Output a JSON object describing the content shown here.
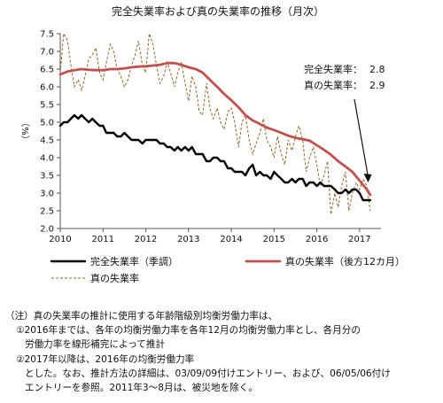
{
  "chart_data": {
    "type": "line",
    "title": "完全失業率および真の失業率の推移（月次）",
    "ylabel": "（%）",
    "ylim": [
      2.0,
      7.5
    ],
    "yticks": [
      "2.0",
      "2.5",
      "3.0",
      "3.5",
      "4.0",
      "4.5",
      "5.0",
      "5.5",
      "6.0",
      "6.5",
      "7.0",
      "7.5"
    ],
    "xlim": [
      2010.0,
      2017.5
    ],
    "xticks": [
      "2010",
      "2011",
      "2012",
      "2013",
      "2014",
      "2015",
      "2016",
      "2017"
    ],
    "grid": false,
    "legend_placement": "bottom",
    "series": [
      {
        "name": "完全失業率（季調）",
        "color": "#000000",
        "style": "solid-thick",
        "x": [
          2010.0,
          2010.08,
          2010.17,
          2010.25,
          2010.33,
          2010.42,
          2010.5,
          2010.58,
          2010.67,
          2010.75,
          2010.83,
          2010.92,
          2011.0,
          2011.08,
          2011.17,
          2011.25,
          2011.33,
          2011.42,
          2011.5,
          2011.58,
          2011.67,
          2011.75,
          2011.83,
          2011.92,
          2012.0,
          2012.08,
          2012.17,
          2012.25,
          2012.33,
          2012.42,
          2012.5,
          2012.58,
          2012.67,
          2012.75,
          2012.83,
          2012.92,
          2013.0,
          2013.08,
          2013.17,
          2013.25,
          2013.33,
          2013.42,
          2013.5,
          2013.58,
          2013.67,
          2013.75,
          2013.83,
          2013.92,
          2014.0,
          2014.08,
          2014.17,
          2014.25,
          2014.33,
          2014.42,
          2014.5,
          2014.58,
          2014.67,
          2014.75,
          2014.83,
          2014.92,
          2015.0,
          2015.08,
          2015.17,
          2015.25,
          2015.33,
          2015.42,
          2015.5,
          2015.58,
          2015.67,
          2015.75,
          2015.83,
          2015.92,
          2016.0,
          2016.08,
          2016.17,
          2016.25,
          2016.33,
          2016.42,
          2016.5,
          2016.58,
          2016.67,
          2016.75,
          2016.83,
          2016.92,
          2017.0,
          2017.08,
          2017.17,
          2017.25
        ],
        "y": [
          4.9,
          5.0,
          5.0,
          5.1,
          5.2,
          5.1,
          5.2,
          5.1,
          5.0,
          5.1,
          5.0,
          4.9,
          4.9,
          4.7,
          4.7,
          4.7,
          4.6,
          4.6,
          4.7,
          4.6,
          4.5,
          4.5,
          4.5,
          4.4,
          4.5,
          4.5,
          4.5,
          4.5,
          4.4,
          4.4,
          4.3,
          4.3,
          4.2,
          4.3,
          4.2,
          4.3,
          4.2,
          4.3,
          4.1,
          4.1,
          4.1,
          3.9,
          3.9,
          4.0,
          4.0,
          3.9,
          3.9,
          3.7,
          3.7,
          3.6,
          3.6,
          3.6,
          3.5,
          3.7,
          3.8,
          3.5,
          3.6,
          3.5,
          3.5,
          3.4,
          3.6,
          3.5,
          3.4,
          3.3,
          3.3,
          3.4,
          3.3,
          3.4,
          3.4,
          3.2,
          3.3,
          3.3,
          3.2,
          3.3,
          3.2,
          3.2,
          3.2,
          3.1,
          3.0,
          3.0,
          3.1,
          3.0,
          3.1,
          3.1,
          3.0,
          2.8,
          2.8,
          2.8
        ]
      },
      {
        "name": "真の失業率（後方12カ月）",
        "color": "#c0504d",
        "style": "solid-thick",
        "x": [
          2010.0,
          2010.17,
          2010.33,
          2010.5,
          2010.67,
          2010.83,
          2011.0,
          2011.17,
          2011.33,
          2011.5,
          2011.67,
          2011.83,
          2012.0,
          2012.17,
          2012.33,
          2012.5,
          2012.67,
          2012.83,
          2013.0,
          2013.17,
          2013.33,
          2013.5,
          2013.67,
          2013.83,
          2014.0,
          2014.17,
          2014.33,
          2014.5,
          2014.67,
          2014.83,
          2015.0,
          2015.17,
          2015.33,
          2015.5,
          2015.67,
          2015.83,
          2016.0,
          2016.17,
          2016.33,
          2016.5,
          2016.67,
          2016.83,
          2017.0,
          2017.17,
          2017.25
        ],
        "y": [
          6.35,
          6.43,
          6.47,
          6.5,
          6.48,
          6.47,
          6.47,
          6.5,
          6.5,
          6.52,
          6.55,
          6.57,
          6.58,
          6.6,
          6.62,
          6.67,
          6.67,
          6.62,
          6.55,
          6.5,
          6.4,
          6.2,
          6.0,
          5.8,
          5.62,
          5.42,
          5.2,
          5.05,
          4.95,
          4.85,
          4.78,
          4.7,
          4.62,
          4.56,
          4.52,
          4.48,
          4.35,
          4.22,
          4.08,
          3.9,
          3.75,
          3.6,
          3.35,
          3.1,
          2.95
        ]
      },
      {
        "name": "真の失業率",
        "color": "#8a6a2a",
        "style": "dashed",
        "x": [
          2010.0,
          2010.08,
          2010.17,
          2010.25,
          2010.33,
          2010.42,
          2010.5,
          2010.58,
          2010.67,
          2010.75,
          2010.83,
          2010.92,
          2011.0,
          2011.08,
          2011.17,
          2011.25,
          2011.33,
          2011.42,
          2011.5,
          2011.58,
          2011.67,
          2011.75,
          2011.83,
          2011.92,
          2012.0,
          2012.08,
          2012.17,
          2012.25,
          2012.33,
          2012.42,
          2012.5,
          2012.58,
          2012.67,
          2012.75,
          2012.83,
          2012.92,
          2013.0,
          2013.08,
          2013.17,
          2013.25,
          2013.33,
          2013.42,
          2013.5,
          2013.58,
          2013.67,
          2013.75,
          2013.83,
          2013.92,
          2014.0,
          2014.08,
          2014.17,
          2014.25,
          2014.33,
          2014.42,
          2014.5,
          2014.58,
          2014.67,
          2014.75,
          2014.83,
          2014.92,
          2015.0,
          2015.08,
          2015.17,
          2015.25,
          2015.33,
          2015.42,
          2015.5,
          2015.58,
          2015.67,
          2015.75,
          2015.83,
          2015.92,
          2016.0,
          2016.08,
          2016.17,
          2016.25,
          2016.33,
          2016.42,
          2016.5,
          2016.58,
          2016.67,
          2016.75,
          2016.83,
          2016.92,
          2017.0,
          2017.08,
          2017.17,
          2017.25
        ],
        "y": [
          6.4,
          7.5,
          7.3,
          6.6,
          6.0,
          6.2,
          5.9,
          6.3,
          6.8,
          6.9,
          7.1,
          6.4,
          6.2,
          6.7,
          7.2,
          7.0,
          6.5,
          6.3,
          6.0,
          6.2,
          6.6,
          6.9,
          7.3,
          6.6,
          6.4,
          7.5,
          7.2,
          6.6,
          6.1,
          6.3,
          6.7,
          6.4,
          6.0,
          6.4,
          6.7,
          6.1,
          5.6,
          6.3,
          6.0,
          5.3,
          5.2,
          6.1,
          5.4,
          5.1,
          5.4,
          5.0,
          4.8,
          5.3,
          5.4,
          5.0,
          4.3,
          5.0,
          5.2,
          4.5,
          4.1,
          4.4,
          4.7,
          5.1,
          4.5,
          4.3,
          4.0,
          4.6,
          4.1,
          3.8,
          4.5,
          4.2,
          4.6,
          4.9,
          4.5,
          3.6,
          4.0,
          4.3,
          3.8,
          3.2,
          3.5,
          3.9,
          2.4,
          3.0,
          2.6,
          3.2,
          3.6,
          2.5,
          3.0,
          3.3,
          3.1,
          3.4,
          3.2,
          2.5
        ]
      }
    ],
    "annotations": [
      {
        "label": "完全失業率：",
        "value": "2.8"
      },
      {
        "label": "真の失業率：",
        "value": "2.9"
      }
    ]
  },
  "notes": {
    "line1": "（注）真の失業率の推計に使用する年齢階級別均衡労働力率は、",
    "line2": "①2016年までは、各年の均衡労働力率を各年12月の均衡労働力率とし、各月分の",
    "line3": "労働力率を線形補完によって推計",
    "line4": "②2017年以降は、2016年の均衡労働力率",
    "line5": "とした。なお、推計方法の詳細は、03/09/09付けエントリー、および、06/05/06付け",
    "line6": "エントリーを参照。2011年3～8月は、被災地を除く。"
  }
}
